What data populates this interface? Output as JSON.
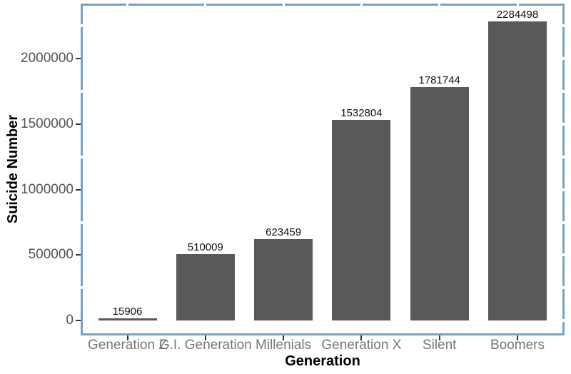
{
  "chart_data": {
    "type": "bar",
    "title": "",
    "xlabel": "Generation",
    "ylabel": "Suicide Number",
    "categories": [
      "Generation Z",
      "G.I. Generation",
      "Millenials",
      "Generation X",
      "Silent",
      "Boomers"
    ],
    "values": [
      15906,
      510009,
      623459,
      1532804,
      1781744,
      2284498
    ],
    "bar_value_labels": [
      "15906",
      "510009",
      "623459",
      "1532804",
      "1781744",
      "2284498"
    ],
    "y_tick_values": [
      0,
      500000,
      1000000,
      1500000,
      2000000
    ],
    "y_tick_labels": [
      "0",
      "500000",
      "1000000",
      "1500000",
      "2000000"
    ],
    "y_minor_step": 250000,
    "ylim": [
      0,
      2400000
    ],
    "grid": "off",
    "legend": "none",
    "colors": {
      "bar_fill": "#595959",
      "panel_border": "#76A2C3",
      "axis_tick": "#333333",
      "y_tick_text": "#555555",
      "x_tick_text": "#767676",
      "value_label_text": "#111111",
      "axis_title_text": "#000000",
      "background": "#FFFFFF"
    }
  }
}
